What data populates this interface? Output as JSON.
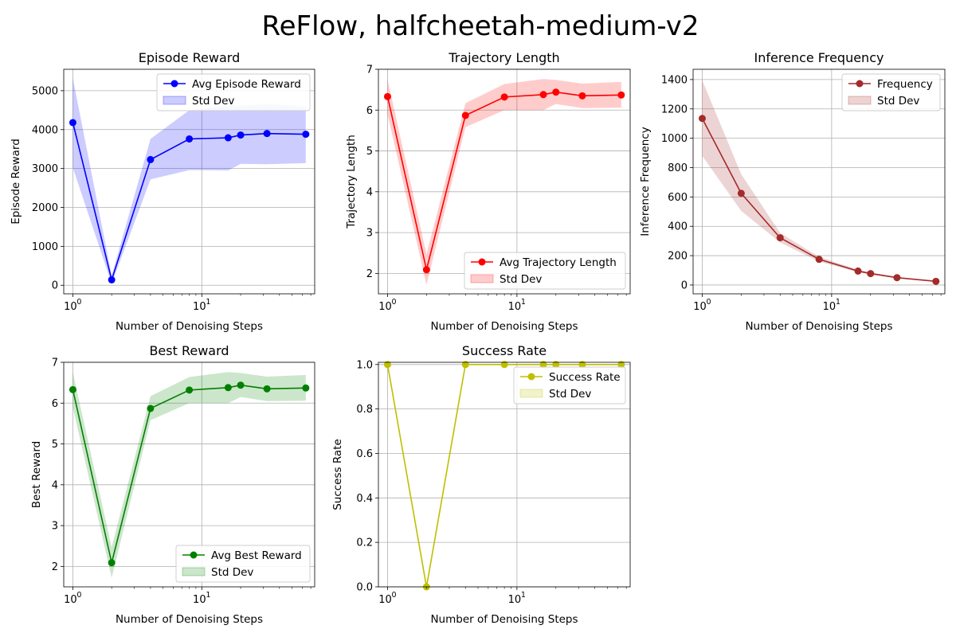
{
  "figure": {
    "title": "ReFlow, halfcheetah-medium-v2"
  },
  "chart_data": [
    {
      "type": "line",
      "title": "Episode Reward",
      "xlabel": "Number of Denoising Steps",
      "ylabel": "Episode Reward",
      "xscale": "log",
      "xlim": [
        0.85,
        75
      ],
      "ylim": [
        -220,
        5550
      ],
      "yticks": [
        0,
        1000,
        2000,
        3000,
        4000,
        5000
      ],
      "ytick_labels": [
        "0",
        "1000",
        "2000",
        "3000",
        "4000",
        "5000"
      ],
      "xticks": [
        1,
        10
      ],
      "xtick_base": "10",
      "xtick_labels": [
        {
          "b": "10",
          "e": "0"
        },
        {
          "b": "10",
          "e": "1"
        }
      ],
      "grid": true,
      "legend_loc": "upper right",
      "x": [
        1,
        2,
        4,
        8,
        16,
        20,
        32,
        64
      ],
      "series": [
        {
          "name": "Avg Episode Reward",
          "band_name": "Std Dev",
          "color": "#0000ff",
          "values": [
            4180,
            140,
            3230,
            3760,
            3790,
            3860,
            3900,
            3880
          ],
          "lower": [
            3020,
            40,
            2720,
            2960,
            2950,
            3120,
            3110,
            3140
          ],
          "upper": [
            5320,
            250,
            3760,
            4500,
            4620,
            4620,
            4660,
            4600
          ]
        }
      ]
    },
    {
      "type": "line",
      "title": "Trajectory Length",
      "xlabel": "Number of Denoising Steps",
      "ylabel": "Trajectory Length",
      "xscale": "log",
      "xlim": [
        0.85,
        75
      ],
      "ylim": [
        1.5,
        7.0
      ],
      "yticks": [
        2,
        3,
        4,
        5,
        6,
        7
      ],
      "ytick_labels": [
        "2",
        "3",
        "4",
        "5",
        "6",
        "7"
      ],
      "xticks": [
        1,
        10
      ],
      "xtick_base": "10",
      "xtick_labels": [
        {
          "b": "10",
          "e": "0"
        },
        {
          "b": "10",
          "e": "1"
        }
      ],
      "grid": true,
      "legend_loc": "lower right",
      "x": [
        1,
        2,
        4,
        8,
        16,
        20,
        32,
        64
      ],
      "series": [
        {
          "name": "Avg Trajectory Length",
          "band_name": "Std Dev",
          "color": "#ff0000",
          "values": [
            6.33,
            2.09,
            5.87,
            6.32,
            6.38,
            6.44,
            6.35,
            6.37
          ],
          "lower": [
            5.9,
            1.72,
            5.58,
            6.0,
            6.0,
            6.15,
            6.05,
            6.06
          ],
          "upper": [
            6.75,
            2.47,
            6.17,
            6.64,
            6.76,
            6.74,
            6.65,
            6.69
          ]
        }
      ]
    },
    {
      "type": "line",
      "title": "Inference Frequency",
      "xlabel": "Number of Denoising Steps",
      "ylabel": "Inference Frequency",
      "xscale": "log",
      "xlim": [
        0.85,
        75
      ],
      "ylim": [
        -60,
        1470
      ],
      "yticks": [
        0,
        200,
        400,
        600,
        800,
        1000,
        1200,
        1400
      ],
      "ytick_labels": [
        "0",
        "200",
        "400",
        "600",
        "800",
        "1000",
        "1200",
        "1400"
      ],
      "xticks": [
        1,
        10
      ],
      "xtick_base": "10",
      "xtick_labels": [
        {
          "b": "10",
          "e": "0"
        },
        {
          "b": "10",
          "e": "1"
        }
      ],
      "grid": true,
      "legend_loc": "upper right",
      "x": [
        1,
        2,
        4,
        8,
        16,
        20,
        32,
        64
      ],
      "series": [
        {
          "name": "Frequency",
          "band_name": "Std Dev",
          "color": "#a52a2a",
          "values": [
            1135,
            625,
            322,
            175,
            95,
            78,
            50,
            25
          ],
          "lower": [
            880,
            505,
            290,
            160,
            87,
            72,
            46,
            23
          ],
          "upper": [
            1395,
            755,
            355,
            192,
            104,
            86,
            55,
            28
          ]
        }
      ]
    },
    {
      "type": "line",
      "title": "Best Reward",
      "xlabel": "Number of Denoising Steps",
      "ylabel": "Best Reward",
      "xscale": "log",
      "xlim": [
        0.85,
        75
      ],
      "ylim": [
        1.5,
        7.0
      ],
      "yticks": [
        2,
        3,
        4,
        5,
        6,
        7
      ],
      "ytick_labels": [
        "2",
        "3",
        "4",
        "5",
        "6",
        "7"
      ],
      "xticks": [
        1,
        10
      ],
      "xtick_base": "10",
      "xtick_labels": [
        {
          "b": "10",
          "e": "0"
        },
        {
          "b": "10",
          "e": "1"
        }
      ],
      "grid": true,
      "legend_loc": "lower right",
      "x": [
        1,
        2,
        4,
        8,
        16,
        20,
        32,
        64
      ],
      "series": [
        {
          "name": "Avg Best Reward",
          "band_name": "Std Dev",
          "color": "#008000",
          "values": [
            6.33,
            2.09,
            5.87,
            6.32,
            6.38,
            6.44,
            6.35,
            6.37
          ],
          "lower": [
            5.9,
            1.72,
            5.58,
            6.0,
            6.0,
            6.15,
            6.05,
            6.06
          ],
          "upper": [
            6.75,
            2.47,
            6.17,
            6.64,
            6.76,
            6.74,
            6.65,
            6.69
          ]
        }
      ]
    },
    {
      "type": "line",
      "title": "Success Rate",
      "xlabel": "Number of Denoising Steps",
      "ylabel": "Success Rate",
      "xscale": "log",
      "xlim": [
        0.85,
        75
      ],
      "ylim": [
        0,
        1.01
      ],
      "yticks": [
        0,
        0.2,
        0.4,
        0.6,
        0.8,
        1.0
      ],
      "ytick_labels": [
        "0.0",
        "0.2",
        "0.4",
        "0.6",
        "0.8",
        "1.0"
      ],
      "xticks": [
        1,
        10
      ],
      "xtick_base": "10",
      "xtick_labels": [
        {
          "b": "10",
          "e": "0"
        },
        {
          "b": "10",
          "e": "1"
        }
      ],
      "grid": true,
      "legend_loc": "upper right",
      "x": [
        1,
        2,
        4,
        8,
        16,
        20,
        32,
        64
      ],
      "series": [
        {
          "name": "Success Rate",
          "band_name": "Std Dev",
          "color": "#bfbf00",
          "values": [
            1,
            0,
            1,
            1,
            1,
            1,
            1,
            1
          ],
          "lower": [
            1,
            0,
            1,
            1,
            1,
            1,
            1,
            1
          ],
          "upper": [
            1,
            0,
            1,
            1,
            1,
            1,
            1,
            1
          ]
        }
      ]
    }
  ]
}
